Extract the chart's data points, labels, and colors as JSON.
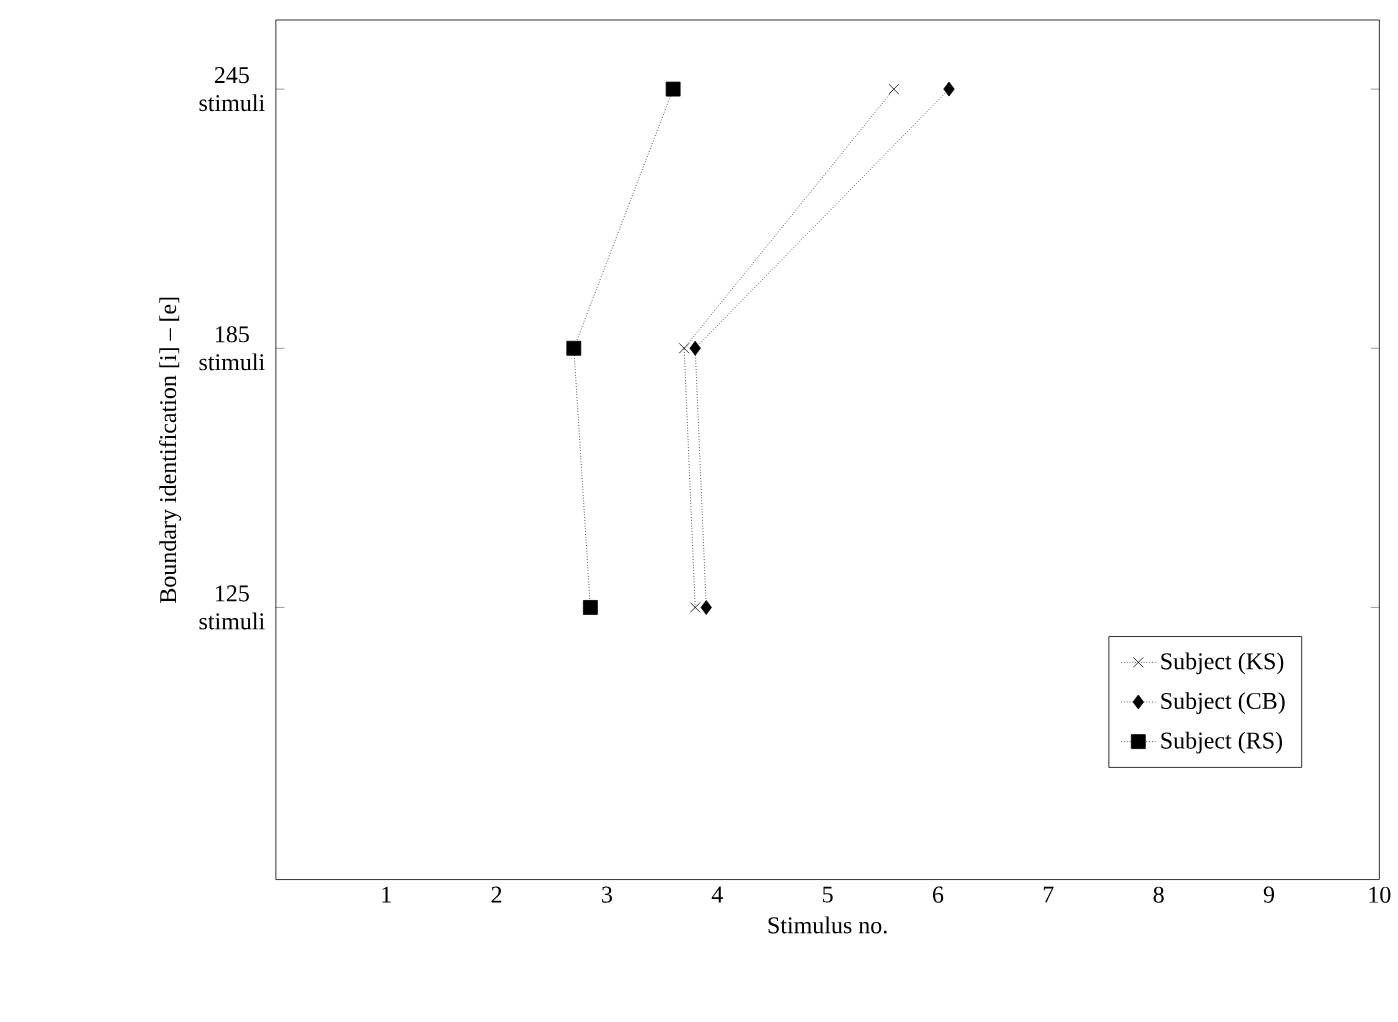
{
  "chart_data": {
    "type": "line",
    "xlabel": "Stimulus no.",
    "ylabel": "Boundary identification [i] – [e]",
    "xlim": [
      0,
      10
    ],
    "xticks": [
      1,
      2,
      3,
      4,
      5,
      6,
      7,
      8,
      9,
      10
    ],
    "ylim": [
      62,
      261
    ],
    "yticks": [
      {
        "value": 125,
        "label": "125 stimuli"
      },
      {
        "value": 185,
        "label": "185 stimuli"
      },
      {
        "value": 245,
        "label": "245 stimuli"
      }
    ],
    "line_style": "dotted",
    "legend": "bottom right",
    "grid": false,
    "series": [
      {
        "name": "Subject (KS)",
        "color": "#000000",
        "marker": "cross",
        "x": [
          3.8,
          3.7,
          5.6
        ],
        "values": [
          125,
          185,
          245
        ]
      },
      {
        "name": "Subject (CB)",
        "color": "#000000",
        "marker": "diamond",
        "x": [
          3.9,
          3.8,
          6.1
        ],
        "values": [
          125,
          185,
          245
        ]
      },
      {
        "name": "Subject (RS)",
        "color": "#000000",
        "marker": "square",
        "x": [
          2.85,
          2.7,
          3.6
        ],
        "values": [
          125,
          185,
          245
        ]
      }
    ]
  }
}
